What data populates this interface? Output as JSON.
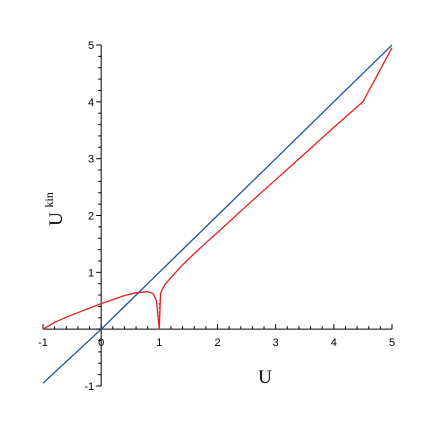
{
  "chart_data": {
    "type": "line",
    "title": "",
    "xlabel": "U",
    "ylabel": "U",
    "ylabel_superscript": "kin",
    "xlim": [
      -1,
      5
    ],
    "ylim": [
      -1,
      5
    ],
    "x_ticks": [
      -1,
      0,
      1,
      2,
      3,
      4,
      5
    ],
    "y_ticks": [
      -1,
      1,
      2,
      3,
      4,
      5
    ],
    "origin_label": "0",
    "grid": false,
    "legend": "none",
    "series": [
      {
        "color": "#1f4fa0",
        "x": [
          -1,
          0,
          1,
          2,
          3,
          4,
          5
        ],
        "y": [
          -0.95,
          0.0,
          1.0,
          2.0,
          3.0,
          4.0,
          5.0
        ]
      },
      {
        "color": "#e02020",
        "x": [
          -1,
          -0.8,
          -0.6,
          -0.4,
          -0.2,
          0.0,
          0.2,
          0.4,
          0.6,
          0.8,
          0.9,
          0.95,
          1.0,
          1.02,
          1.05,
          1.1,
          1.2,
          1.4,
          1.6,
          1.8,
          2.0,
          2.5,
          3.0,
          3.5,
          4.0,
          4.5,
          5.0
        ],
        "y": [
          0.0,
          0.12,
          0.21,
          0.29,
          0.37,
          0.45,
          0.52,
          0.59,
          0.64,
          0.66,
          0.62,
          0.5,
          0.0,
          0.62,
          0.7,
          0.79,
          0.91,
          1.13,
          1.33,
          1.52,
          1.7,
          2.17,
          2.63,
          3.09,
          3.55,
          4.0,
          4.95
        ]
      }
    ],
    "annotations": [
      {
        "type": "dotted-vertical",
        "color": "#e02020",
        "x": 1,
        "y_from": 0,
        "y_to": 0.5
      }
    ]
  }
}
